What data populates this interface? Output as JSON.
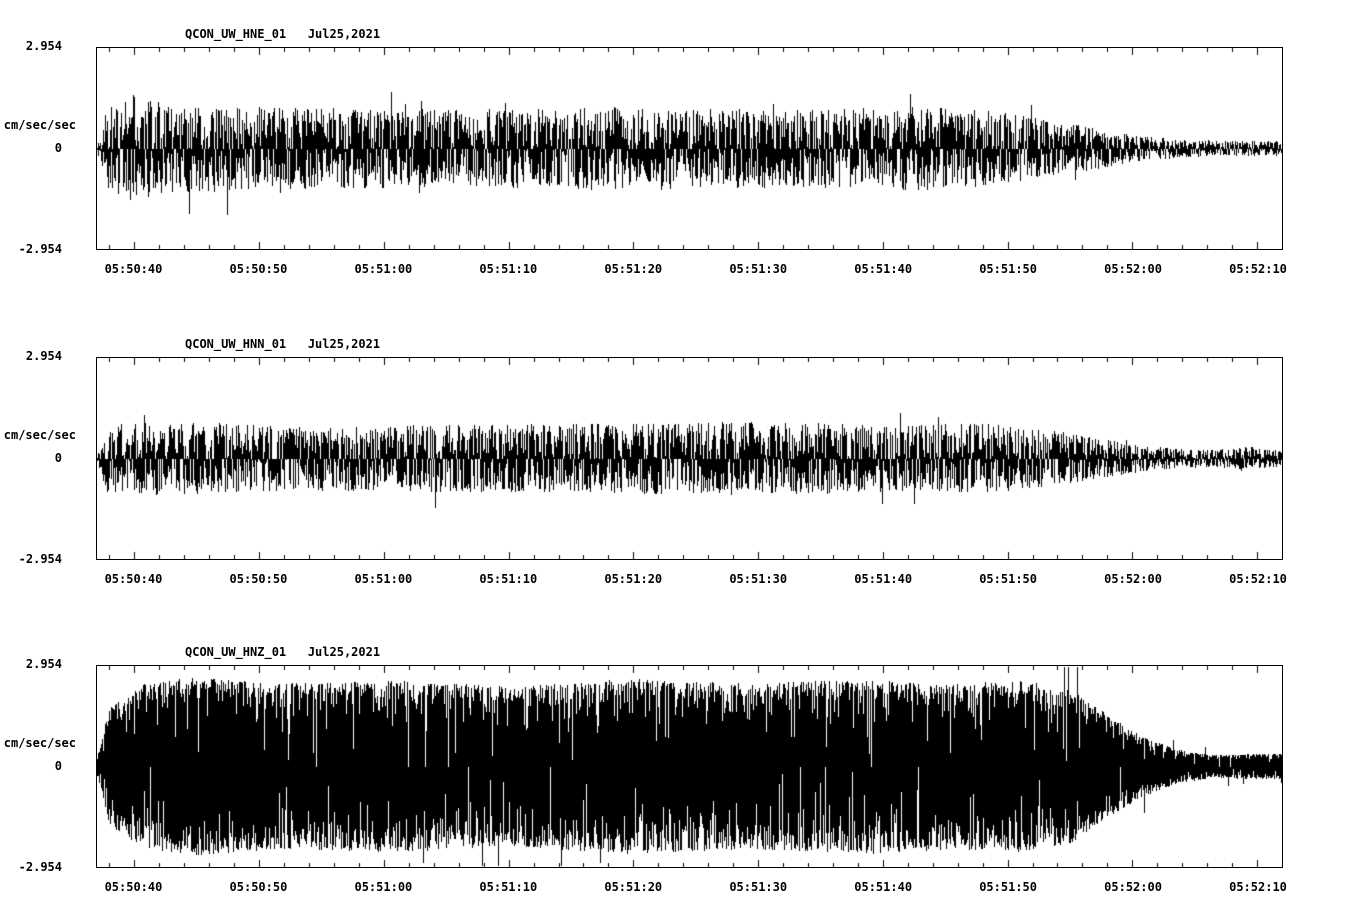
{
  "figure": {
    "background": "#ffffff",
    "trace_color": "#000000"
  },
  "chart_data": [
    {
      "type": "line",
      "kind": "seismogram-waveform",
      "station": "QCON_UW_HNE_01",
      "date": "Jul25,2021",
      "title": "QCON_UW_HNE_01   Jul25,2021",
      "ylabel": "cm/sec/sec",
      "ylim": [
        -2.954,
        2.954
      ],
      "yticks": [
        "2.954",
        "0",
        "-2.954"
      ],
      "x_tick_labels": [
        "05:50:40",
        "05:50:50",
        "05:51:00",
        "05:51:10",
        "05:51:20",
        "05:51:30",
        "05:51:40",
        "05:51:50",
        "05:52:00",
        "05:52:10"
      ],
      "x_span_seconds": 95,
      "x_first_tick_offset_seconds": 3,
      "x_tick_interval_seconds": 10,
      "grid": false,
      "envelope": [
        [
          0,
          0.05
        ],
        [
          0.008,
          0.42
        ],
        [
          0.03,
          0.55
        ],
        [
          0.06,
          0.46
        ],
        [
          0.15,
          0.42
        ],
        [
          0.3,
          0.4
        ],
        [
          0.45,
          0.43
        ],
        [
          0.6,
          0.4
        ],
        [
          0.7,
          0.43
        ],
        [
          0.76,
          0.38
        ],
        [
          0.8,
          0.3
        ],
        [
          0.84,
          0.22
        ],
        [
          0.88,
          0.13
        ],
        [
          0.92,
          0.09
        ],
        [
          1.0,
          0.08
        ]
      ],
      "texture": {
        "seed": 11,
        "subsamples": 3,
        "shape": 1.1,
        "spike_prob": 0.02
      }
    },
    {
      "type": "line",
      "kind": "seismogram-waveform",
      "station": "QCON_UW_HNN_01",
      "date": "Jul25,2021",
      "title": "QCON_UW_HNN_01   Jul25,2021",
      "ylabel": "cm/sec/sec",
      "ylim": [
        -2.954,
        2.954
      ],
      "yticks": [
        "2.954",
        "0",
        "-2.954"
      ],
      "x_tick_labels": [
        "05:50:40",
        "05:50:50",
        "05:51:00",
        "05:51:10",
        "05:51:20",
        "05:51:30",
        "05:51:40",
        "05:51:50",
        "05:52:00",
        "05:52:10"
      ],
      "x_span_seconds": 95,
      "x_first_tick_offset_seconds": 3,
      "x_tick_interval_seconds": 10,
      "grid": false,
      "envelope": [
        [
          0,
          0.04
        ],
        [
          0.008,
          0.35
        ],
        [
          0.05,
          0.38
        ],
        [
          0.2,
          0.33
        ],
        [
          0.4,
          0.36
        ],
        [
          0.55,
          0.38
        ],
        [
          0.68,
          0.34
        ],
        [
          0.75,
          0.36
        ],
        [
          0.8,
          0.3
        ],
        [
          0.85,
          0.2
        ],
        [
          0.89,
          0.12
        ],
        [
          0.94,
          0.09
        ],
        [
          0.97,
          0.12
        ],
        [
          1.0,
          0.08
        ]
      ],
      "texture": {
        "seed": 22,
        "subsamples": 3,
        "shape": 1.1,
        "spike_prob": 0.015
      }
    },
    {
      "type": "line",
      "kind": "seismogram-waveform",
      "station": "QCON_UW_HNZ_01",
      "date": "Jul25,2021",
      "title": "QCON_UW_HNZ_01   Jul25,2021",
      "ylabel": "cm/sec/sec",
      "ylim": [
        -2.954,
        2.954
      ],
      "yticks": [
        "2.954",
        "0",
        "-2.954"
      ],
      "x_tick_labels": [
        "05:50:40",
        "05:50:50",
        "05:51:00",
        "05:51:10",
        "05:51:20",
        "05:51:30",
        "05:51:40",
        "05:51:50",
        "05:52:00",
        "05:52:10"
      ],
      "x_span_seconds": 95,
      "x_first_tick_offset_seconds": 3,
      "x_tick_interval_seconds": 10,
      "grid": false,
      "envelope": [
        [
          0,
          0.1
        ],
        [
          0.01,
          0.6
        ],
        [
          0.04,
          0.85
        ],
        [
          0.08,
          0.92
        ],
        [
          0.15,
          0.85
        ],
        [
          0.25,
          0.88
        ],
        [
          0.35,
          0.82
        ],
        [
          0.45,
          0.9
        ],
        [
          0.55,
          0.85
        ],
        [
          0.65,
          0.9
        ],
        [
          0.72,
          0.85
        ],
        [
          0.78,
          0.88
        ],
        [
          0.82,
          0.8
        ],
        [
          0.85,
          0.55
        ],
        [
          0.88,
          0.32
        ],
        [
          0.91,
          0.18
        ],
        [
          0.94,
          0.12
        ],
        [
          1.0,
          0.13
        ]
      ],
      "texture": {
        "seed": 33,
        "subsamples": 7,
        "shape": 0.6,
        "spike_prob": 0.01
      }
    }
  ]
}
